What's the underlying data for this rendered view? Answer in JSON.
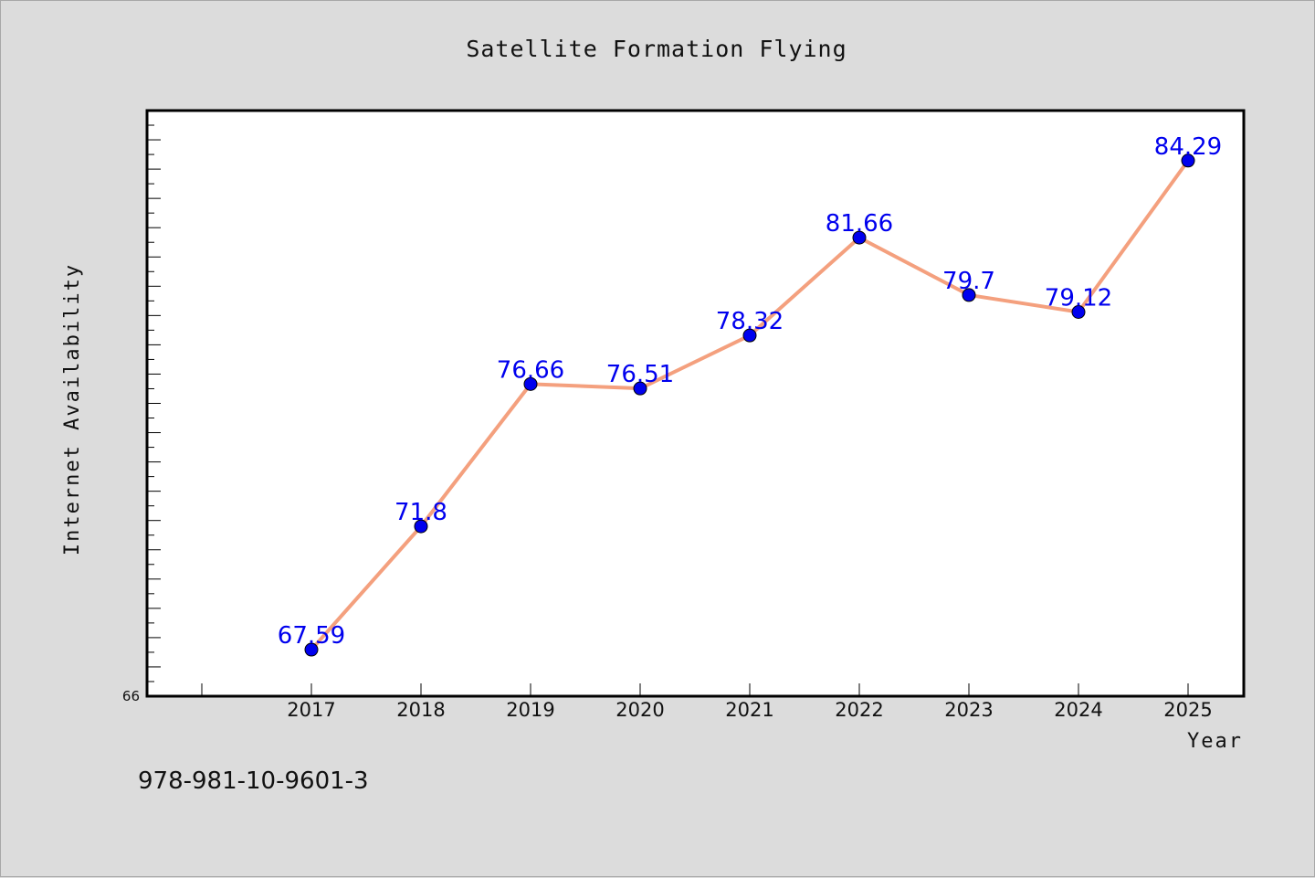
{
  "chart_data": {
    "type": "line",
    "title": "Satellite Formation Flying",
    "xlabel": "Year",
    "ylabel": "Internet Availability",
    "categories": [
      "2017",
      "2018",
      "2019",
      "2020",
      "2021",
      "2022",
      "2023",
      "2024",
      "2025"
    ],
    "series": [
      {
        "values": [
          67.59,
          71.8,
          76.66,
          76.51,
          78.32,
          81.66,
          79.7,
          79.12,
          84.29
        ]
      }
    ],
    "data_labels": [
      "67.59",
      "71.8",
      "76.66",
      "76.51",
      "78.32",
      "81.66",
      "79.7",
      "79.12",
      "84.29"
    ],
    "ylim": [
      66,
      86
    ],
    "y_tick_labels": [
      "66"
    ],
    "grid": false,
    "line_color": "#f4a07e",
    "marker_color": "#0000ee",
    "label_color": "#0000ee"
  },
  "footer": {
    "isbn": "978-981-10-9601-3"
  }
}
